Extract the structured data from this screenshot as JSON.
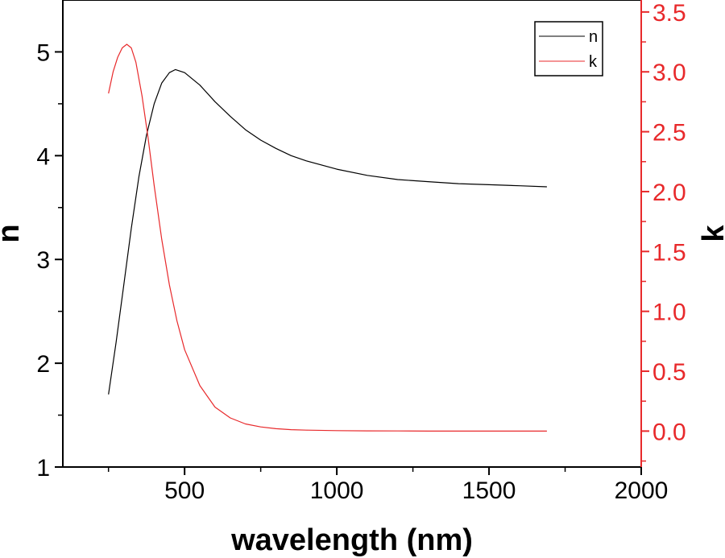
{
  "chart_data": {
    "type": "line",
    "xlabel": "wavelength (nm)",
    "ylabel_left": "n",
    "ylabel_right": "k",
    "xlim": [
      100,
      2000
    ],
    "ylim_left": [
      1,
      5.5
    ],
    "ylim_right": [
      -0.3,
      3.6
    ],
    "x_ticks": [
      500,
      1000,
      1500,
      2000
    ],
    "y_left_ticks": [
      1,
      2,
      3,
      4,
      5
    ],
    "y_right_ticks": [
      "0.0",
      "0.5",
      "1.0",
      "1.5",
      "2.0",
      "2.5",
      "3.0",
      "3.5"
    ],
    "grid": false,
    "legend_position": "top-right",
    "series": [
      {
        "name": "n",
        "axis": "left",
        "color": "#000000",
        "x": [
          250,
          275,
          300,
          325,
          350,
          375,
          400,
          425,
          450,
          470,
          500,
          550,
          600,
          650,
          700,
          750,
          800,
          850,
          900,
          1000,
          1100,
          1200,
          1300,
          1400,
          1500,
          1600,
          1690
        ],
        "y": [
          1.7,
          2.2,
          2.75,
          3.3,
          3.8,
          4.2,
          4.5,
          4.7,
          4.8,
          4.83,
          4.8,
          4.68,
          4.52,
          4.38,
          4.25,
          4.15,
          4.07,
          4.0,
          3.95,
          3.87,
          3.81,
          3.77,
          3.75,
          3.73,
          3.72,
          3.71,
          3.7
        ]
      },
      {
        "name": "k",
        "axis": "right",
        "color": "#e8292b",
        "x": [
          250,
          265,
          280,
          295,
          310,
          325,
          340,
          360,
          380,
          400,
          425,
          450,
          475,
          500,
          550,
          600,
          650,
          700,
          750,
          800,
          850,
          900,
          1000,
          1100,
          1200,
          1300,
          1400,
          1500,
          1600,
          1690
        ],
        "y": [
          2.82,
          3.0,
          3.12,
          3.2,
          3.23,
          3.2,
          3.08,
          2.8,
          2.45,
          2.05,
          1.6,
          1.22,
          0.92,
          0.68,
          0.38,
          0.2,
          0.11,
          0.06,
          0.035,
          0.02,
          0.012,
          0.008,
          0.004,
          0.002,
          0.001,
          0.0,
          0.0,
          0.0,
          0.0,
          0.0
        ]
      }
    ]
  }
}
